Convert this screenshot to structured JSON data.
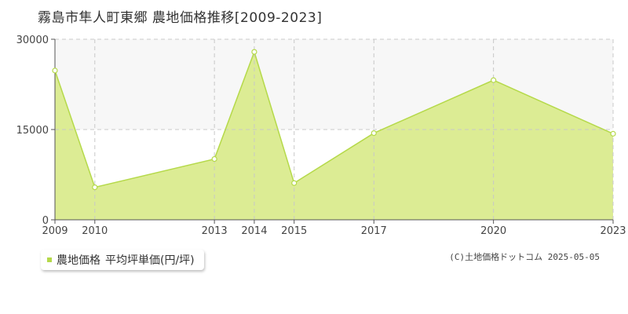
{
  "title": "霧島市隼人町東郷 農地価格推移[2009-2023]",
  "legend": {
    "series_name": "農地価格",
    "unit": "平均坪単価(円/坪)",
    "swatch_color": "#b5d94a"
  },
  "copyright": "(C)土地価格ドットコム 2025-05-05",
  "colors": {
    "fill": "#dcec94",
    "line": "#b5d94a",
    "grid": "#c8c8c8",
    "band": "#f7f7f7"
  },
  "chart_data": {
    "type": "area",
    "categories": [
      "2009",
      "2010",
      "2013",
      "2014",
      "2015",
      "2017",
      "2020",
      "2023"
    ],
    "series": [
      {
        "name": "農地価格",
        "values": [
          24800,
          5400,
          10100,
          27900,
          6100,
          14400,
          23200,
          14300
        ]
      }
    ],
    "ylim": [
      0,
      30000
    ],
    "yticks": [
      "0",
      "15000",
      "30000"
    ],
    "grid": true,
    "legend_position": "bottom-left"
  }
}
